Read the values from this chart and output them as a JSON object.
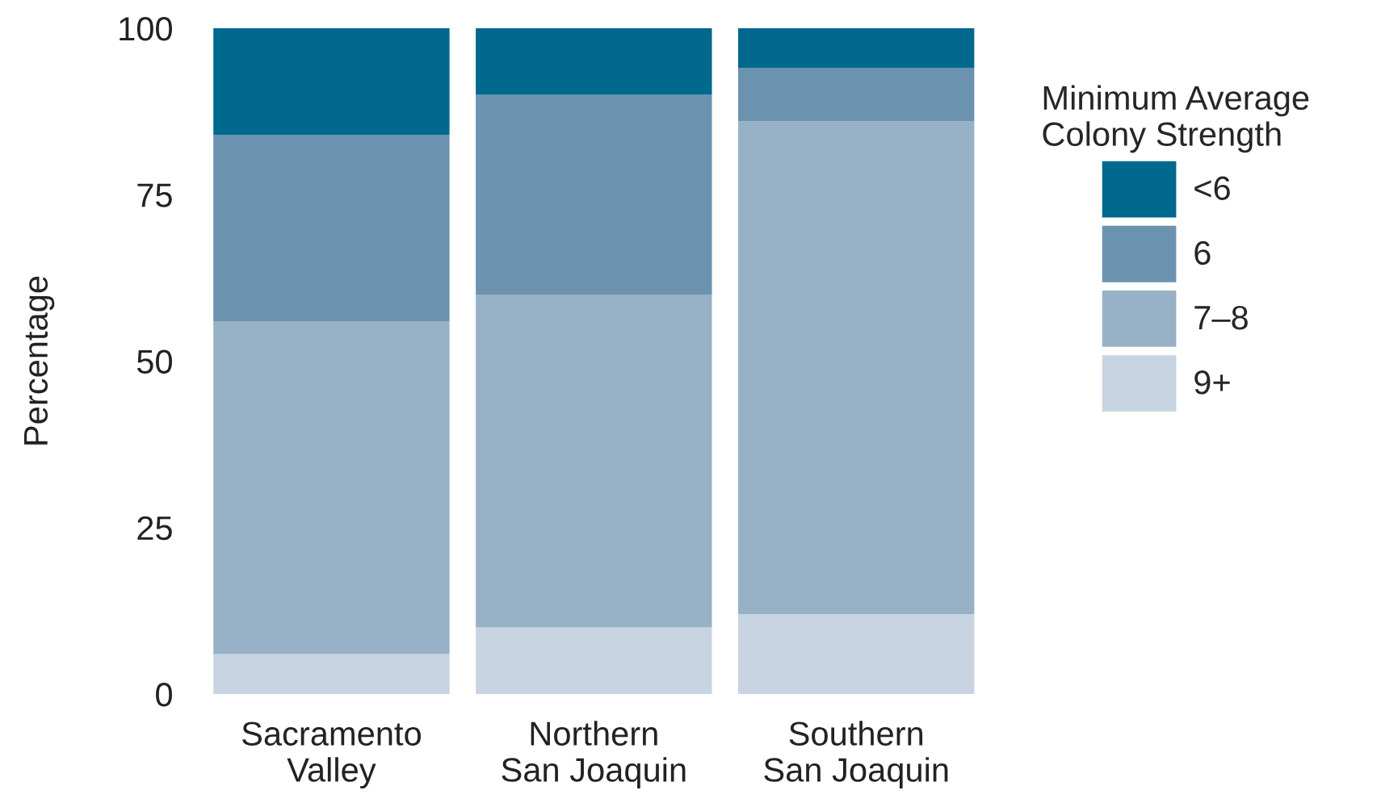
{
  "chart_data": {
    "type": "bar",
    "stacked": true,
    "ylabel": "Percentage",
    "legend_title": "Minimum Average\nColony Strength",
    "legend": "right",
    "categories": [
      "Sacramento\nValley",
      "Northern\nSan Joaquin",
      "Southern\nSan Joaquin"
    ],
    "series": [
      {
        "name": "9+",
        "color": "#c8d4e1",
        "values": [
          6,
          10,
          12
        ]
      },
      {
        "name": "7–8",
        "color": "#97b1c7",
        "values": [
          50,
          50,
          74
        ]
      },
      {
        "name": "6",
        "color": "#6b93b0",
        "values": [
          28,
          30,
          8
        ]
      },
      {
        "name": "<6",
        "color": "#00698d",
        "values": [
          16,
          10,
          6
        ]
      }
    ],
    "ylim": [
      0,
      100
    ],
    "yticks": [
      0,
      25,
      50,
      75,
      100
    ],
    "grid": false
  }
}
